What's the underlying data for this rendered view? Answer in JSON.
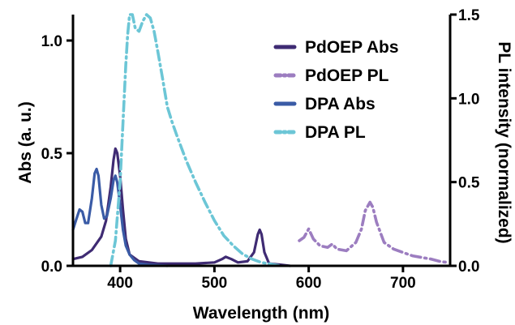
{
  "chart_data": {
    "type": "line",
    "xlabel": "Wavelength (nm)",
    "ylabel_left": "Abs (a. u.)",
    "ylabel_right": "PL intensity (normalized)",
    "xlim": [
      350,
      750
    ],
    "ylim_left": [
      0,
      1.0
    ],
    "ylim_right": [
      0,
      1.5
    ],
    "x_ticks": [
      400,
      500,
      600,
      700
    ],
    "y_ticks_left": [
      "0.0",
      "0.5",
      "1.0"
    ],
    "y_ticks_right": [
      "0.0",
      "0.5",
      "1.0",
      "1.5"
    ],
    "legend_position": "top-right",
    "series": [
      {
        "name": "PdOEP Abs",
        "axis": "left",
        "color": "#3f2b73",
        "style": "solid",
        "points": [
          [
            350,
            0.03
          ],
          [
            360,
            0.04
          ],
          [
            370,
            0.07
          ],
          [
            380,
            0.13
          ],
          [
            385,
            0.2
          ],
          [
            390,
            0.35
          ],
          [
            393,
            0.47
          ],
          [
            395,
            0.52
          ],
          [
            397,
            0.5
          ],
          [
            400,
            0.4
          ],
          [
            403,
            0.25
          ],
          [
            406,
            0.12
          ],
          [
            410,
            0.05
          ],
          [
            420,
            0.02
          ],
          [
            440,
            0.01
          ],
          [
            480,
            0.01
          ],
          [
            500,
            0.015
          ],
          [
            508,
            0.03
          ],
          [
            512,
            0.04
          ],
          [
            518,
            0.03
          ],
          [
            525,
            0.015
          ],
          [
            535,
            0.02
          ],
          [
            542,
            0.06
          ],
          [
            546,
            0.14
          ],
          [
            548,
            0.16
          ],
          [
            550,
            0.14
          ],
          [
            553,
            0.06
          ],
          [
            558,
            0.01
          ],
          [
            570,
            0.005
          ],
          [
            580,
            0.0
          ]
        ]
      },
      {
        "name": "PdOEP PL",
        "axis": "right",
        "color": "#9c7dc0",
        "style": "dotdash",
        "points": [
          [
            590,
            0.15
          ],
          [
            595,
            0.17
          ],
          [
            600,
            0.22
          ],
          [
            605,
            0.16
          ],
          [
            612,
            0.12
          ],
          [
            620,
            0.11
          ],
          [
            625,
            0.13
          ],
          [
            630,
            0.1
          ],
          [
            640,
            0.09
          ],
          [
            650,
            0.14
          ],
          [
            656,
            0.22
          ],
          [
            660,
            0.33
          ],
          [
            665,
            0.38
          ],
          [
            668,
            0.35
          ],
          [
            672,
            0.26
          ],
          [
            680,
            0.14
          ],
          [
            690,
            0.1
          ],
          [
            700,
            0.08
          ],
          [
            710,
            0.06
          ],
          [
            720,
            0.05
          ],
          [
            730,
            0.04
          ],
          [
            740,
            0.025
          ],
          [
            748,
            0.02
          ]
        ]
      },
      {
        "name": "DPA Abs",
        "axis": "left",
        "color": "#3a5ba6",
        "style": "solid",
        "points": [
          [
            350,
            0.16
          ],
          [
            353,
            0.2
          ],
          [
            357,
            0.25
          ],
          [
            360,
            0.24
          ],
          [
            363,
            0.19
          ],
          [
            366,
            0.19
          ],
          [
            370,
            0.3
          ],
          [
            373,
            0.41
          ],
          [
            375,
            0.43
          ],
          [
            377,
            0.4
          ],
          [
            380,
            0.27
          ],
          [
            383,
            0.21
          ],
          [
            386,
            0.22
          ],
          [
            390,
            0.3
          ],
          [
            393,
            0.38
          ],
          [
            395,
            0.4
          ],
          [
            397,
            0.37
          ],
          [
            400,
            0.27
          ],
          [
            403,
            0.16
          ],
          [
            406,
            0.09
          ],
          [
            410,
            0.05
          ],
          [
            415,
            0.025
          ],
          [
            420,
            0.01
          ],
          [
            430,
            0.005
          ],
          [
            450,
            0.0
          ]
        ]
      },
      {
        "name": "DPA PL",
        "axis": "right",
        "color": "#6cc6d6",
        "style": "dotdash",
        "points": [
          [
            390,
            0.0
          ],
          [
            395,
            0.15
          ],
          [
            400,
            0.5
          ],
          [
            403,
            0.85
          ],
          [
            406,
            1.2
          ],
          [
            408,
            1.38
          ],
          [
            410,
            1.5
          ],
          [
            413,
            1.5
          ],
          [
            416,
            1.42
          ],
          [
            420,
            1.4
          ],
          [
            424,
            1.46
          ],
          [
            428,
            1.5
          ],
          [
            432,
            1.48
          ],
          [
            436,
            1.4
          ],
          [
            440,
            1.28
          ],
          [
            445,
            1.12
          ],
          [
            450,
            0.95
          ],
          [
            455,
            0.86
          ],
          [
            460,
            0.78
          ],
          [
            470,
            0.63
          ],
          [
            480,
            0.5
          ],
          [
            490,
            0.38
          ],
          [
            500,
            0.27
          ],
          [
            510,
            0.18
          ],
          [
            520,
            0.12
          ],
          [
            530,
            0.07
          ],
          [
            540,
            0.04
          ],
          [
            550,
            0.02
          ],
          [
            560,
            0.01
          ],
          [
            570,
            0.0
          ]
        ]
      }
    ]
  }
}
